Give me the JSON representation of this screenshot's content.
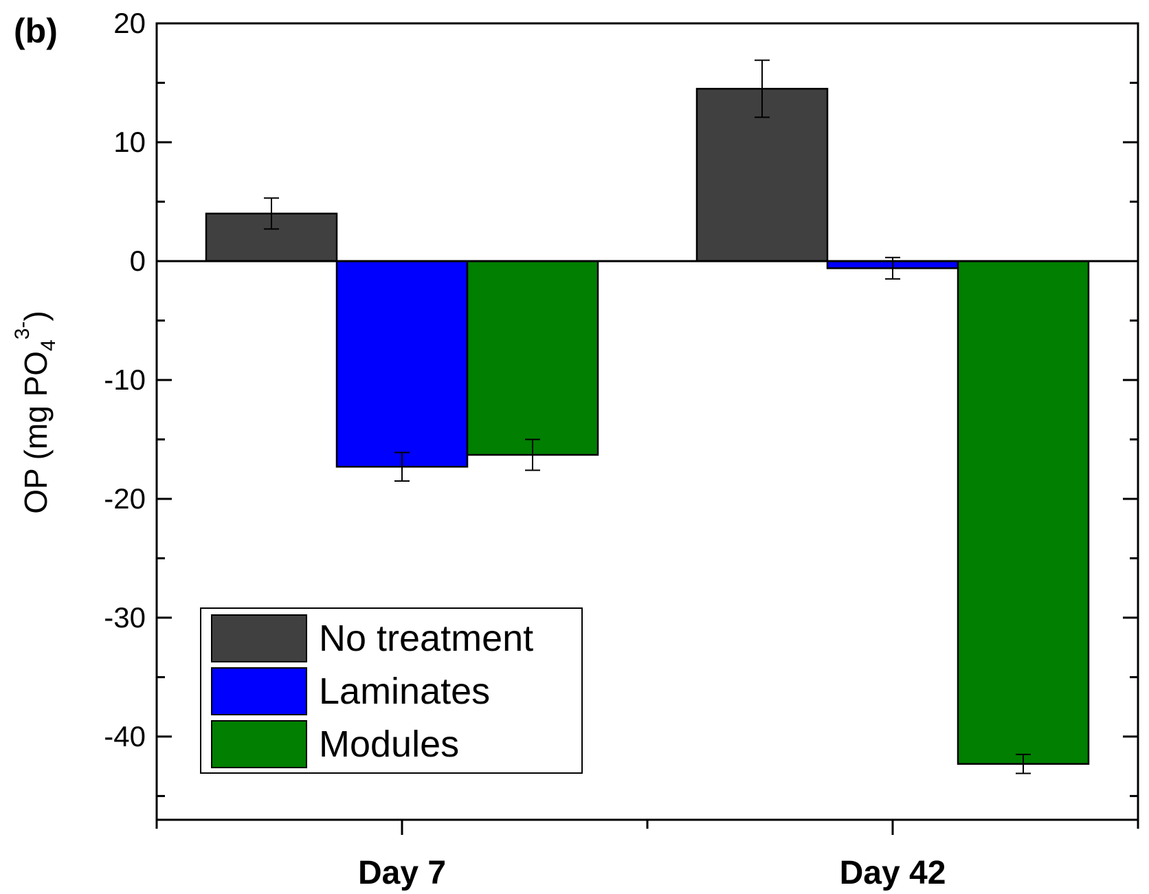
{
  "chart_data": {
    "type": "bar",
    "panel_label": "(b)",
    "categories": [
      "Day 7",
      "Day 42"
    ],
    "ylabel": {
      "main": "OP (mg PO",
      "sub": "4",
      "sup": "3-",
      "close": ")"
    },
    "ylim": [
      -47,
      20
    ],
    "yticks": [
      20,
      10,
      0,
      -10,
      -20,
      -30,
      -40
    ],
    "grid": false,
    "legend_position": "bottom-left",
    "series": [
      {
        "name": "No treatment",
        "color": "#404040",
        "values": [
          4.0,
          14.5
        ],
        "errors": [
          1.3,
          2.4
        ]
      },
      {
        "name": "Laminates",
        "color": "#0000ff",
        "values": [
          -17.3,
          -0.6
        ],
        "errors": [
          1.2,
          0.9
        ]
      },
      {
        "name": "Modules",
        "color": "#007f00",
        "values": [
          -16.3,
          -42.3
        ],
        "errors": [
          1.3,
          0.8
        ]
      }
    ]
  }
}
